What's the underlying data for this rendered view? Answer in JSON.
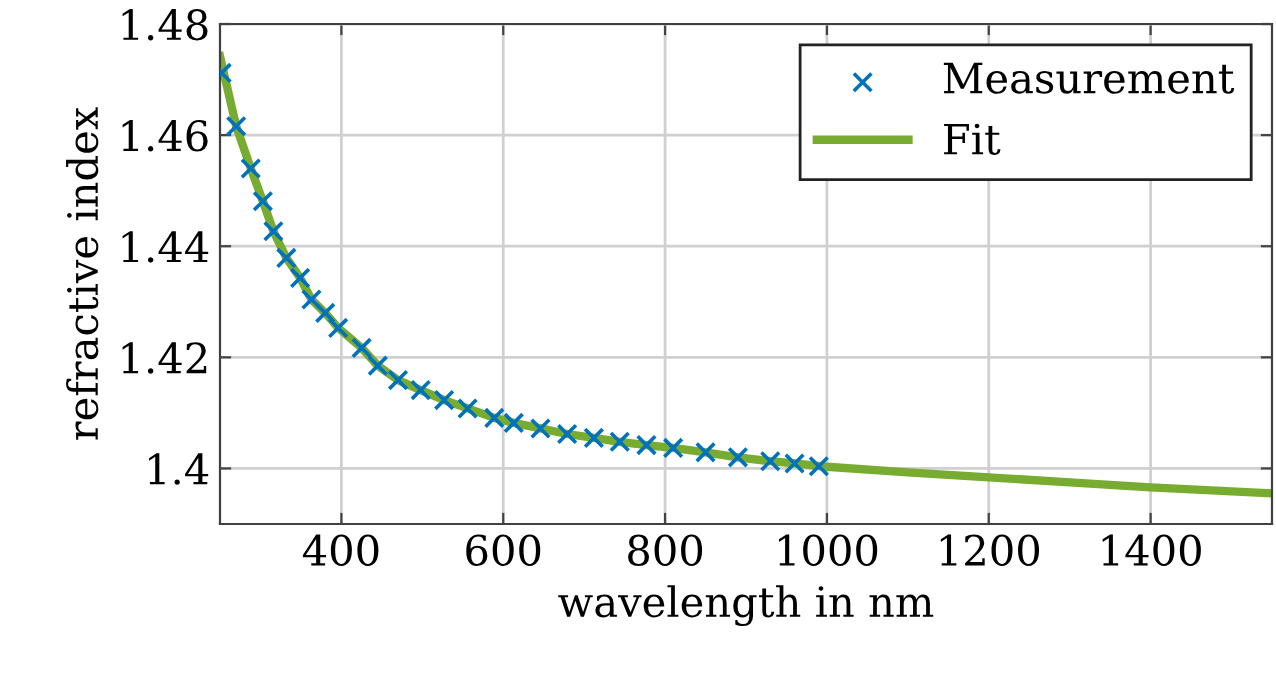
{
  "chart_data": {
    "type": "line",
    "xlabel": "wavelength in nm",
    "ylabel": "refractive index",
    "xlim": [
      250,
      1550
    ],
    "ylim": [
      1.39,
      1.48
    ],
    "xticks": [
      400,
      600,
      800,
      1000,
      1200,
      1400
    ],
    "yticks": [
      {
        "value": 1.4,
        "label": "1.4"
      },
      1.42,
      1.44,
      1.46,
      1.48
    ],
    "grid": true,
    "legend": "top right",
    "series": [
      {
        "name": "Measurement",
        "type": "scatter",
        "marker": "cross",
        "color": "#0072bd",
        "x": [
          252,
          270,
          288,
          303,
          316,
          332,
          349,
          363,
          380,
          396,
          425,
          445,
          470,
          498,
          527,
          556,
          589,
          613,
          646,
          679,
          712,
          744,
          777,
          810,
          850,
          890,
          930,
          960,
          990
        ],
        "values": [
          1.4712,
          1.4616,
          1.454,
          1.4481,
          1.4427,
          1.4379,
          1.4343,
          1.4304,
          1.428,
          1.4253,
          1.4217,
          1.4185,
          1.4159,
          1.4141,
          1.4123,
          1.4108,
          1.4091,
          1.4082,
          1.4072,
          1.4062,
          1.4055,
          1.4048,
          1.4042,
          1.4037,
          1.4029,
          1.402,
          1.4013,
          1.4009,
          1.4004
        ]
      },
      {
        "name": "Fit",
        "line_style": "solid",
        "color": "#77ac30",
        "x": [
          250,
          270,
          288,
          303,
          316,
          332,
          349,
          363,
          380,
          396,
          425,
          445,
          470,
          498,
          527,
          556,
          589,
          613,
          646,
          679,
          712,
          744,
          777,
          810,
          850,
          890,
          930,
          960,
          1000,
          1100,
          1200,
          1300,
          1400,
          1550
        ],
        "values": [
          1.4742,
          1.4616,
          1.454,
          1.4481,
          1.4427,
          1.4379,
          1.4343,
          1.4304,
          1.428,
          1.4253,
          1.4217,
          1.4185,
          1.4159,
          1.4141,
          1.4123,
          1.4108,
          1.4091,
          1.4082,
          1.4072,
          1.4062,
          1.4055,
          1.4048,
          1.4042,
          1.4037,
          1.4029,
          1.402,
          1.4013,
          1.4009,
          1.4003,
          1.3993,
          1.3984,
          1.3975,
          1.3966,
          1.3955
        ]
      }
    ]
  }
}
